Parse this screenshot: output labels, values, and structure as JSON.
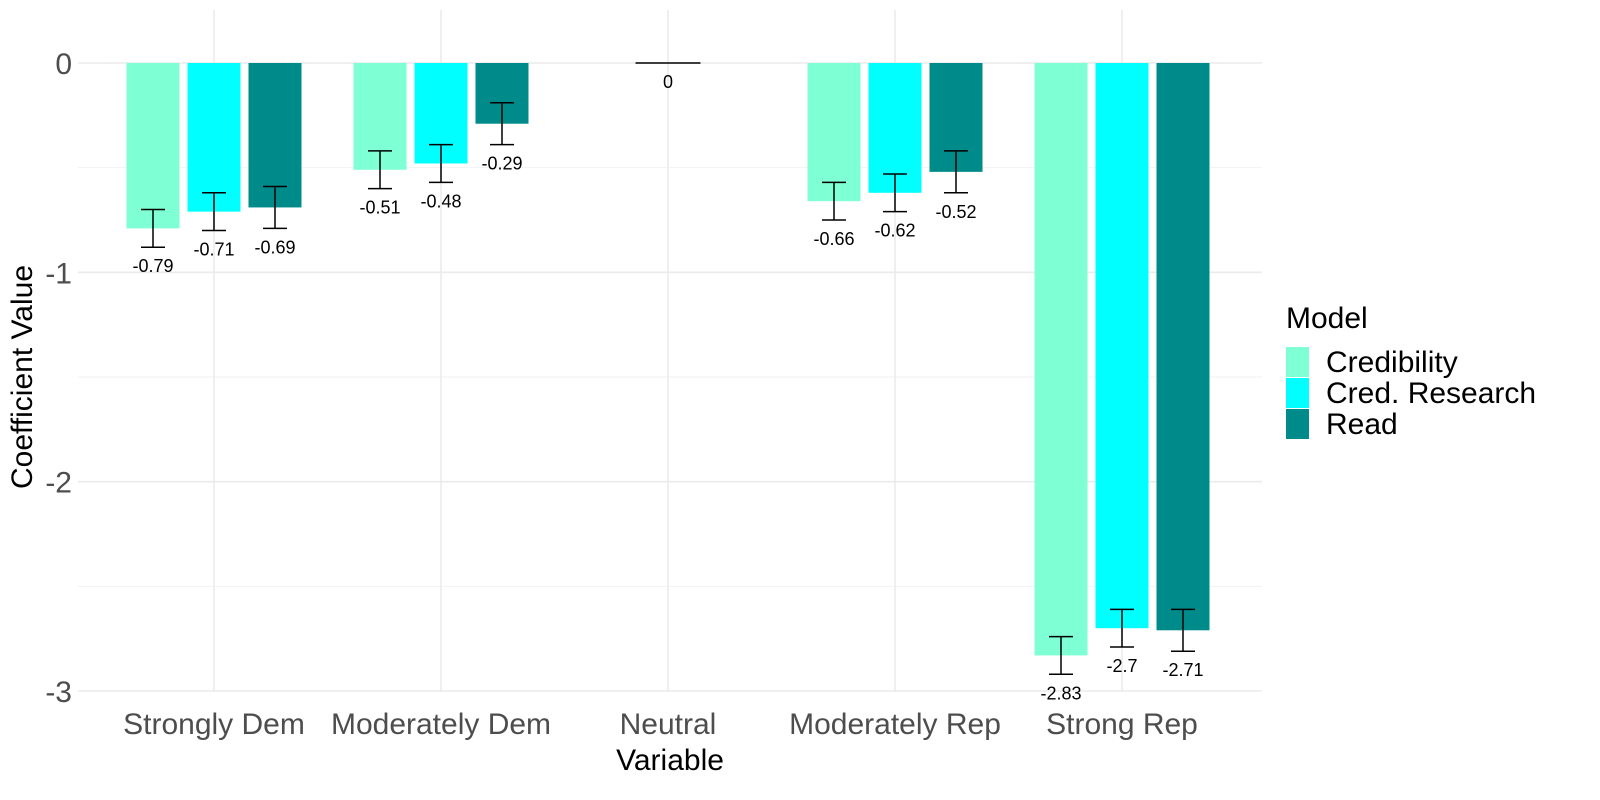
{
  "chart_data": {
    "type": "bar",
    "title": "",
    "xlabel": "Variable",
    "ylabel": "Coefficient Value",
    "ylim": [
      -3,
      0
    ],
    "yticks": [
      "0",
      "-1",
      "-2",
      "-3"
    ],
    "grid": true,
    "legend": {
      "title": "Model",
      "position": "right"
    },
    "categories": [
      "Strongly Dem",
      "Moderately Dem",
      "Neutral",
      "Moderately Rep",
      "Strong Rep"
    ],
    "series": [
      {
        "name": "Credibility",
        "color": "#7FFFD4",
        "values": [
          -0.79,
          -0.51,
          0,
          -0.66,
          -2.83
        ],
        "labels": [
          "-0.79",
          "-0.51",
          "0",
          "-0.66",
          "-2.83"
        ],
        "error_low": [
          -0.88,
          -0.6,
          0,
          -0.75,
          -2.92
        ],
        "error_high": [
          -0.7,
          -0.42,
          0,
          -0.57,
          -2.74
        ]
      },
      {
        "name": "Cred. Research",
        "color": "#00FFFF",
        "values": [
          -0.71,
          -0.48,
          null,
          -0.62,
          -2.7
        ],
        "labels": [
          "-0.71",
          "-0.48",
          "",
          "-0.62",
          "-2.7"
        ],
        "error_low": [
          -0.8,
          -0.57,
          null,
          -0.71,
          -2.79
        ],
        "error_high": [
          -0.62,
          -0.39,
          null,
          -0.53,
          -2.61
        ]
      },
      {
        "name": "Read",
        "color": "#008B8B",
        "values": [
          -0.69,
          -0.29,
          null,
          -0.52,
          -2.71
        ],
        "labels": [
          "-0.69",
          "-0.29",
          "",
          "-0.52",
          "-2.71"
        ],
        "error_low": [
          -0.79,
          -0.39,
          null,
          -0.62,
          -2.81
        ],
        "error_high": [
          -0.59,
          -0.19,
          null,
          -0.42,
          -2.61
        ]
      }
    ]
  }
}
